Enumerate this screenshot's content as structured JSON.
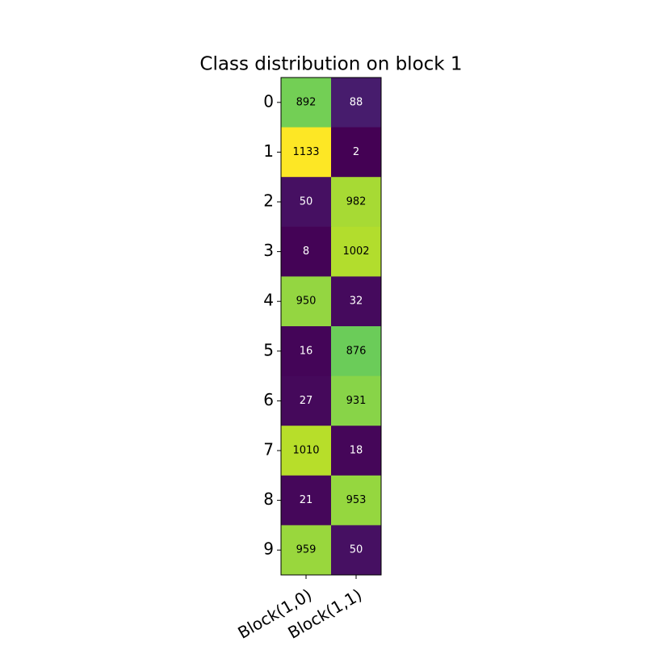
{
  "chart_data": {
    "type": "heatmap",
    "title": "Class distribution on block 1",
    "x_categories": [
      "Block(1,0)",
      "Block(1,1)"
    ],
    "y_categories": [
      "0",
      "1",
      "2",
      "3",
      "4",
      "5",
      "6",
      "7",
      "8",
      "9"
    ],
    "values": [
      [
        892,
        88
      ],
      [
        1133,
        2
      ],
      [
        50,
        982
      ],
      [
        8,
        1002
      ],
      [
        950,
        32
      ],
      [
        16,
        876
      ],
      [
        27,
        931
      ],
      [
        1010,
        18
      ],
      [
        21,
        953
      ],
      [
        959,
        50
      ]
    ],
    "colormap": "viridis"
  }
}
